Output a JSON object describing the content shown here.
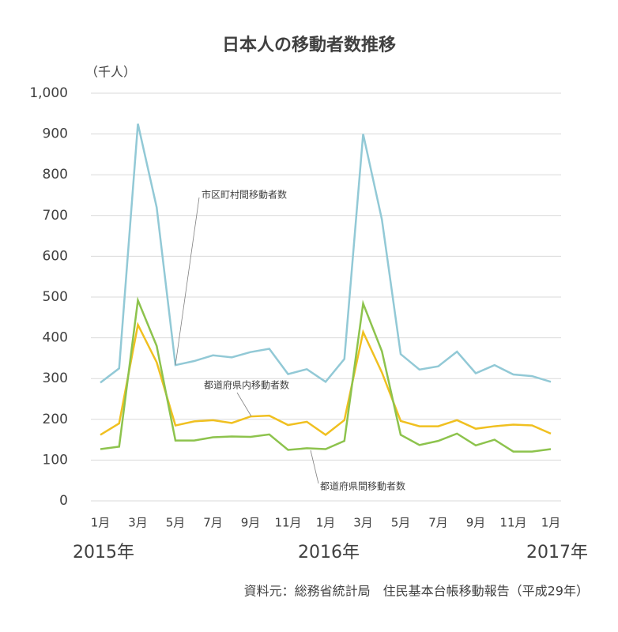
{
  "chart_data": {
    "type": "line",
    "title": "日本人の移動者数推移",
    "y_unit": "（千人）",
    "source": "資料元：総務省統計局　住民基本台帳移動報告（平成29年）",
    "categories": [
      "1月",
      null,
      "3月",
      null,
      "5月",
      null,
      "7月",
      null,
      "9月",
      null,
      "11月",
      null,
      "1月",
      null,
      "3月",
      null,
      "5月",
      null,
      "7月",
      null,
      "9月",
      null,
      "11月",
      null,
      "1月"
    ],
    "years": [
      "2015年",
      "2016年",
      "2017年"
    ],
    "series": [
      {
        "name": "市区町村間移動者数",
        "color": "#92c9d6",
        "values": [
          290,
          325,
          925,
          720,
          333,
          343,
          357,
          352,
          365,
          373,
          311,
          323,
          292,
          348,
          900,
          690,
          360,
          322,
          330,
          366,
          313,
          333,
          310,
          306,
          292
        ]
      },
      {
        "name": "都道府県内移動者数",
        "color": "#f0c020",
        "values": [
          162,
          190,
          432,
          340,
          185,
          195,
          198,
          191,
          207,
          209,
          186,
          194,
          162,
          198,
          414,
          315,
          196,
          183,
          183,
          198,
          177,
          183,
          187,
          185,
          165
        ]
      },
      {
        "name": "都道府県間移動者数",
        "color": "#8dc34d",
        "values": [
          127,
          133,
          492,
          380,
          148,
          148,
          156,
          158,
          157,
          163,
          125,
          129,
          127,
          147,
          484,
          367,
          162,
          137,
          147,
          165,
          136,
          150,
          121,
          121,
          127
        ]
      }
    ],
    "ylim": [
      0,
      1000
    ],
    "yticks": [
      0,
      100,
      200,
      300,
      400,
      500,
      600,
      700,
      800,
      900,
      {
        "value": 1000,
        "label": "1,000"
      }
    ],
    "grid": true
  }
}
